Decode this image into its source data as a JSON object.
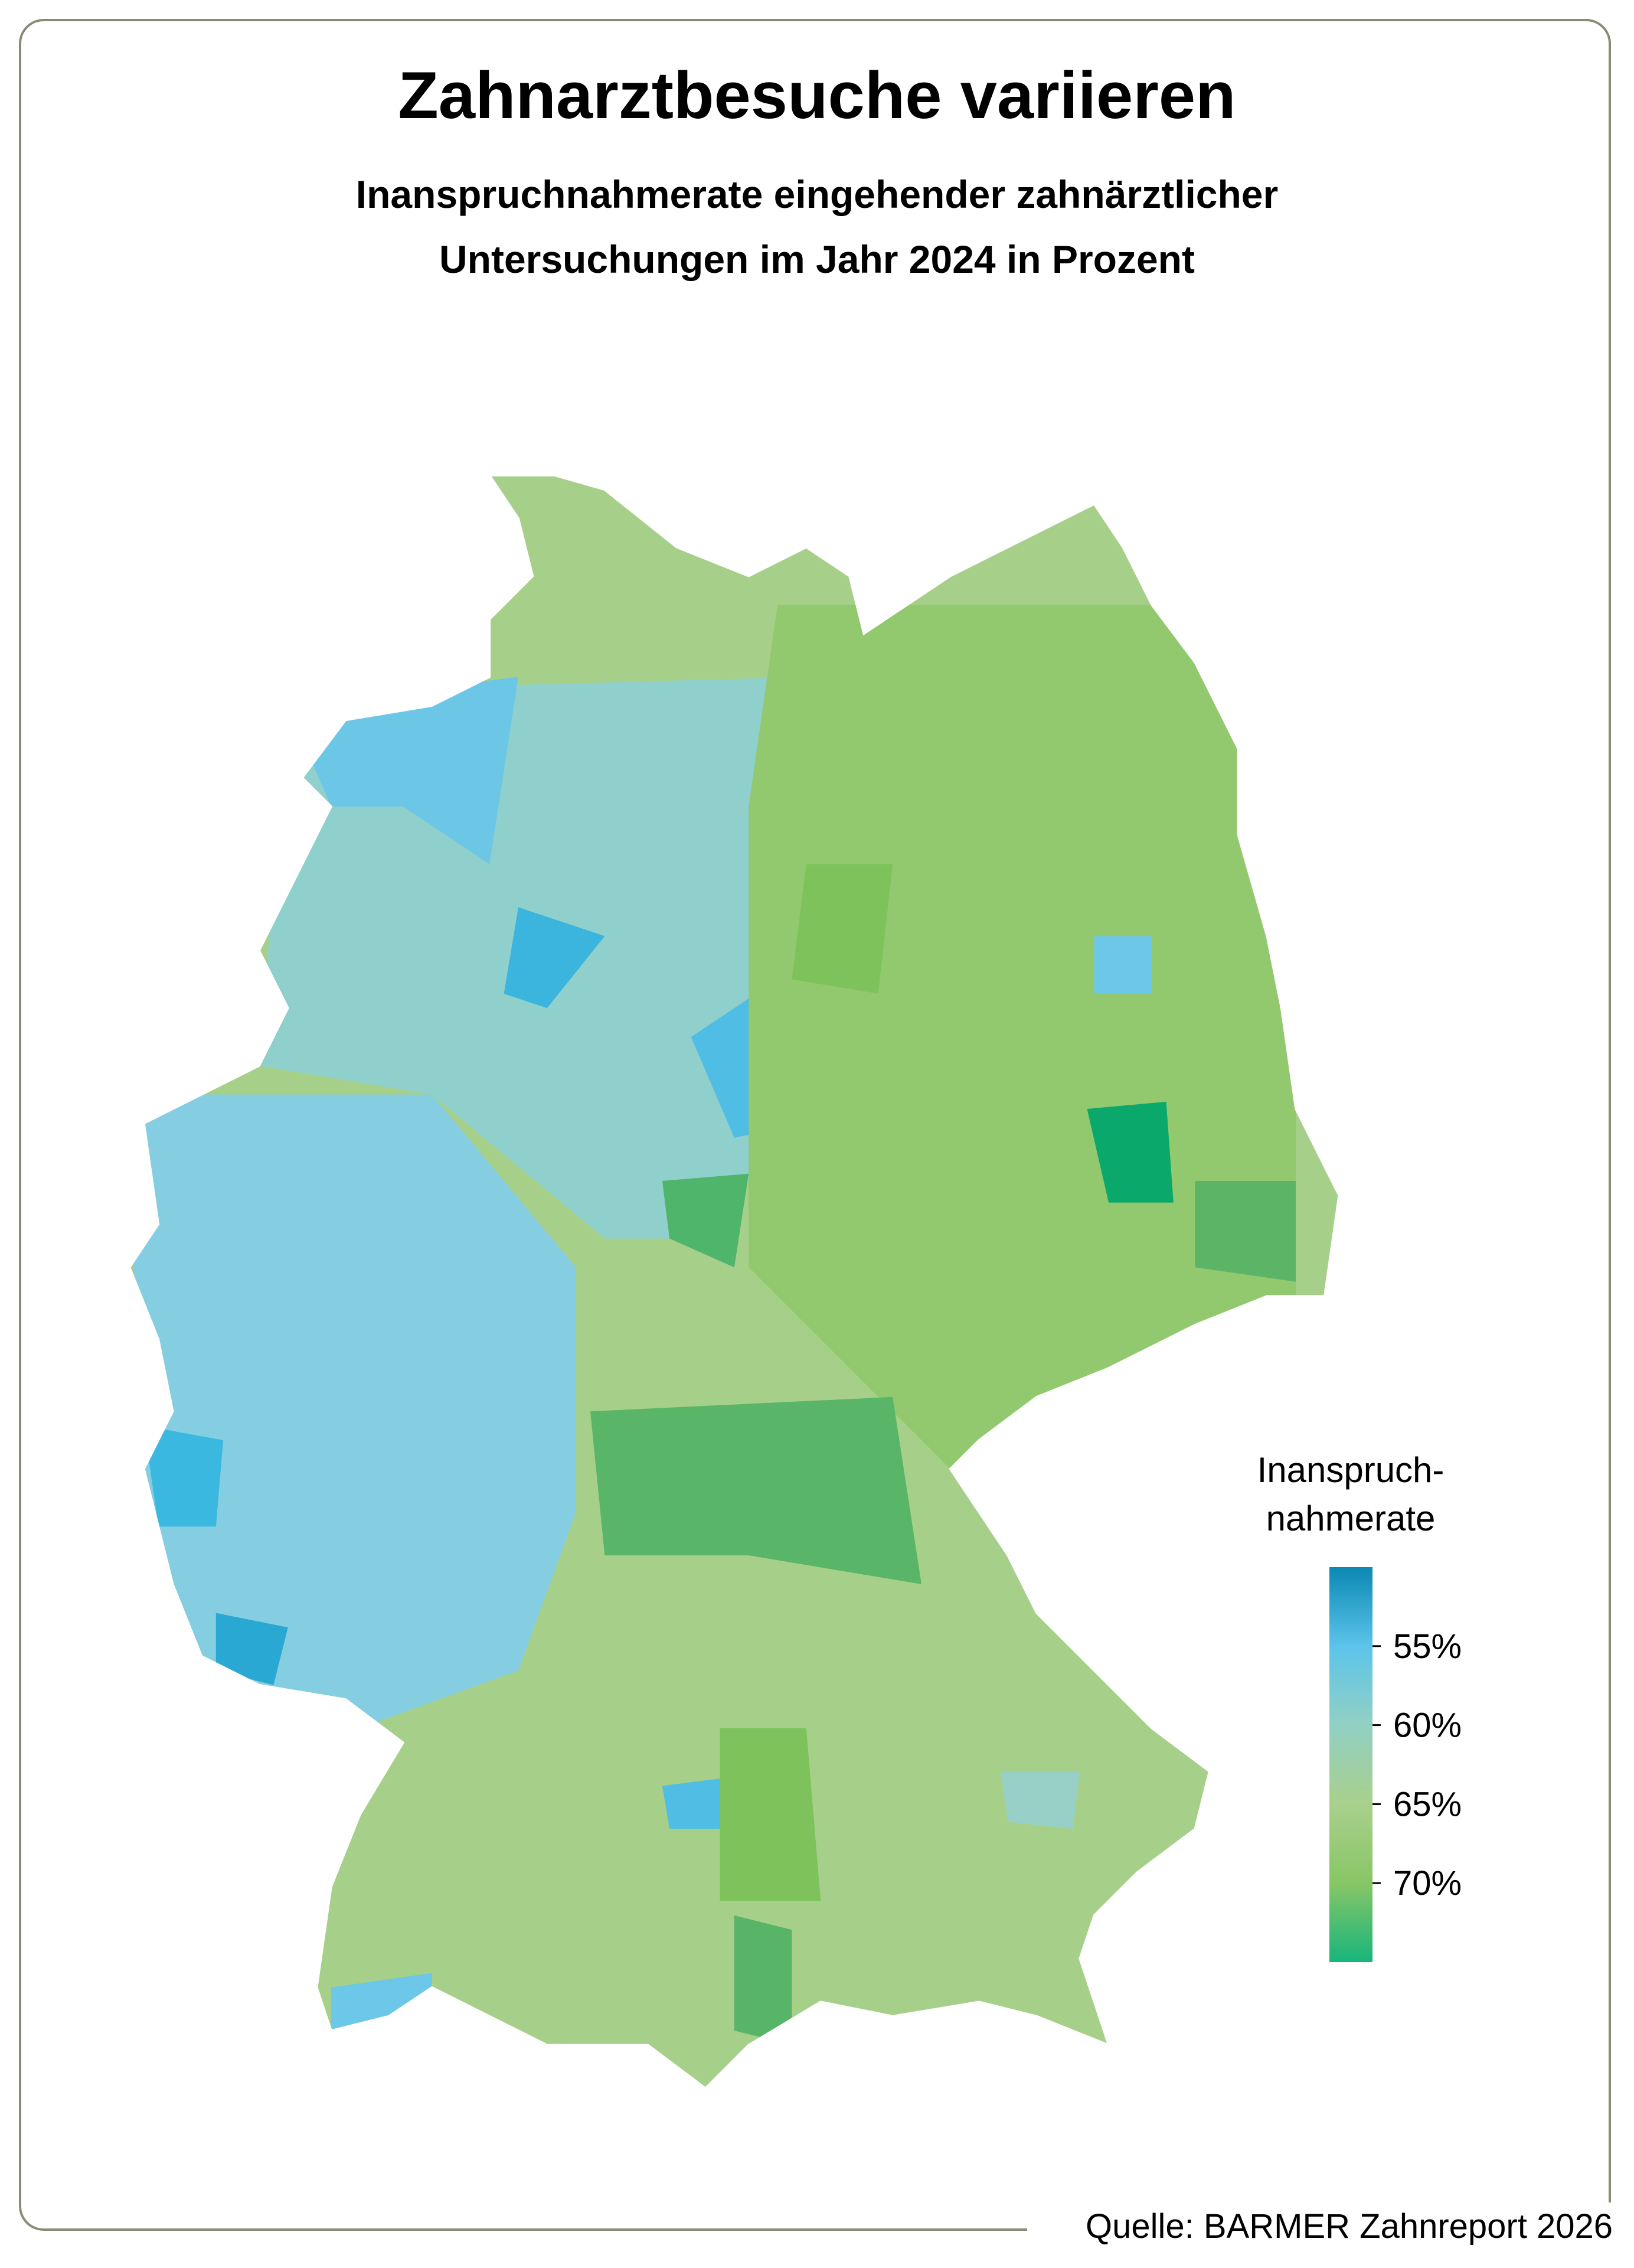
{
  "title": "Zahnarztbesuche variieren",
  "subtitle": [
    "Inanspruchnahmerate eingehender zahnärztlicher",
    "Untersuchungen im Jahr 2024 in Prozent"
  ],
  "legend": {
    "title": [
      "Inanspruch-",
      "nahmerate"
    ],
    "lim": [
      50,
      75
    ],
    "ticks": [
      {
        "value": 55,
        "label": "55%"
      },
      {
        "value": 60,
        "label": "60%"
      },
      {
        "value": 65,
        "label": "65%"
      },
      {
        "value": 70,
        "label": "70%"
      }
    ],
    "colors": [
      "#0a88b4",
      "#5cc4ea",
      "#92d0c4",
      "#a9d08c",
      "#88c666",
      "#17b57c"
    ]
  },
  "source": "Quelle: BARMER Zahnreport 2026"
}
